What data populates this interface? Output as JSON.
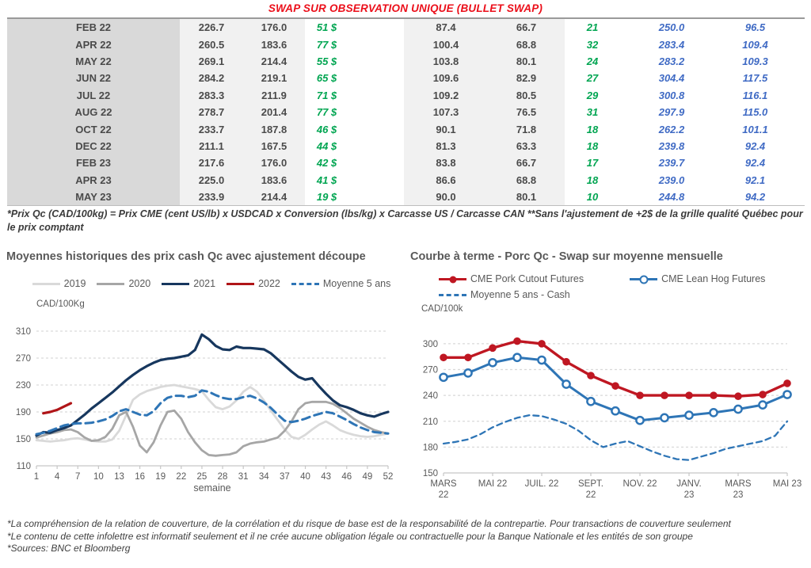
{
  "title": "SWAP SUR OBSERVATION UNIQUE (BULLET SWAP)",
  "colors": {
    "title_red": "#eb0e19",
    "green": "#00a551",
    "blue": "#3f6ac4",
    "text_gray": "#595959",
    "navy_2021": "#17375e",
    "red_2022": "#b01518",
    "steel_blue": "#2e75b6",
    "gray_2020": "#a6a6a6",
    "gray_2019": "#d9d9d9",
    "pork_red": "#bf1722"
  },
  "table": {
    "rows": [
      {
        "month": "FEB 22",
        "cells": [
          "226.7",
          "176.0",
          "51 $",
          "87.4",
          "66.7",
          "21",
          "250.0",
          "96.5"
        ]
      },
      {
        "month": "APR 22",
        "cells": [
          "260.5",
          "183.6",
          "77 $",
          "100.4",
          "68.8",
          "32",
          "283.4",
          "109.4"
        ]
      },
      {
        "month": "MAY 22",
        "cells": [
          "269.1",
          "214.4",
          "55 $",
          "103.8",
          "80.1",
          "24",
          "283.2",
          "109.3"
        ]
      },
      {
        "month": "JUN 22",
        "cells": [
          "284.2",
          "219.1",
          "65 $",
          "109.6",
          "82.9",
          "27",
          "304.4",
          "117.5"
        ]
      },
      {
        "month": "JUL 22",
        "cells": [
          "283.3",
          "211.9",
          "71 $",
          "109.2",
          "80.5",
          "29",
          "300.8",
          "116.1"
        ]
      },
      {
        "month": "AUG 22",
        "cells": [
          "278.7",
          "201.4",
          "77 $",
          "107.3",
          "76.5",
          "31",
          "297.9",
          "115.0"
        ]
      },
      {
        "month": "OCT 22",
        "cells": [
          "233.7",
          "187.8",
          "46 $",
          "90.1",
          "71.8",
          "18",
          "262.2",
          "101.1"
        ]
      },
      {
        "month": "DEC 22",
        "cells": [
          "211.1",
          "167.5",
          "44 $",
          "81.3",
          "63.3",
          "18",
          "239.8",
          "92.4"
        ]
      },
      {
        "month": "FEB 23",
        "cells": [
          "217.6",
          "176.0",
          "42 $",
          "83.8",
          "66.7",
          "17",
          "239.7",
          "92.4"
        ]
      },
      {
        "month": "APR 23",
        "cells": [
          "225.0",
          "183.6",
          "41 $",
          "86.6",
          "68.8",
          "18",
          "239.0",
          "92.1"
        ]
      },
      {
        "month": "MAY 23",
        "cells": [
          "233.9",
          "214.4",
          "19 $",
          "90.0",
          "80.1",
          "10",
          "244.8",
          "94.2"
        ]
      }
    ],
    "col_text_classes": [
      "",
      "",
      "green",
      "",
      "",
      "green",
      "blue",
      "blue"
    ],
    "footnote": "*Prix Qc (CAD/100kg) = Prix CME (cent US/lb) x USDCAD x Conversion (lbs/kg) x Carcasse US / Carcasse CAN **Sans l'ajustement de +2$ de la grille qualité Québec pour le prix comptant"
  },
  "chart_data": [
    {
      "type": "line",
      "title": "Moyennes historiques des prix cash Qc avec ajustement découpe",
      "ylabel": "CAD/100Kg",
      "xlabel": "semaine",
      "xlim": [
        1,
        52
      ],
      "ylim": [
        110,
        310
      ],
      "yticks": [
        110,
        150,
        190,
        230,
        270,
        310
      ],
      "xticks": [
        1,
        4,
        7,
        10,
        13,
        16,
        19,
        22,
        25,
        28,
        31,
        34,
        37,
        40,
        43,
        46,
        49,
        52
      ],
      "grid": "dashed-horizontal",
      "legend_position": "top-center",
      "margins": {
        "l": 38,
        "t": 26,
        "r": 22,
        "b": 44
      },
      "series": [
        {
          "name": "2019",
          "color": "#d9d9d9",
          "style": "solid",
          "width": 2.8,
          "x_start": 1,
          "values": [
            148,
            147,
            146,
            147,
            148,
            150,
            151,
            149,
            147,
            146,
            146,
            149,
            162,
            185,
            208,
            216,
            221,
            224,
            227,
            229,
            230,
            228,
            226,
            224,
            221,
            208,
            197,
            194,
            198,
            207,
            220,
            227,
            220,
            207,
            192,
            178,
            164,
            153,
            150,
            156,
            164,
            171,
            176,
            170,
            163,
            159,
            156,
            154,
            153,
            154,
            156,
            158
          ]
        },
        {
          "name": "2020",
          "color": "#a6a6a6",
          "style": "solid",
          "width": 2.8,
          "x_start": 1,
          "values": [
            152,
            155,
            158,
            160,
            163,
            164,
            160,
            152,
            147,
            148,
            153,
            165,
            185,
            190,
            168,
            140,
            130,
            145,
            170,
            190,
            192,
            180,
            160,
            145,
            133,
            126,
            125,
            126,
            127,
            130,
            139,
            143,
            145,
            146,
            149,
            152,
            162,
            176,
            194,
            203,
            205,
            205,
            205,
            202,
            196,
            188,
            180,
            174,
            168,
            163,
            160,
            158
          ]
        },
        {
          "name": "2021",
          "color": "#17375e",
          "style": "solid",
          "width": 3.2,
          "x_start": 1,
          "values": [
            155,
            160,
            159,
            163,
            166,
            170,
            178,
            186,
            195,
            203,
            211,
            219,
            228,
            237,
            245,
            252,
            258,
            263,
            267,
            269,
            270,
            272,
            274,
            282,
            305,
            298,
            288,
            283,
            282,
            287,
            285,
            285,
            284,
            283,
            277,
            268,
            259,
            250,
            242,
            238,
            240,
            228,
            217,
            207,
            200,
            197,
            193,
            188,
            185,
            183,
            187,
            190
          ]
        },
        {
          "name": "2022",
          "color": "#b01518",
          "style": "solid",
          "width": 3.2,
          "x_start": 2,
          "values": [
            188,
            190,
            193,
            198,
            203
          ]
        },
        {
          "name": "Moyenne 5 ans",
          "color": "#2e75b6",
          "style": "dashed",
          "width": 3,
          "dash": "10 6",
          "x_start": 1,
          "values": [
            157,
            159,
            162,
            166,
            170,
            172,
            173,
            173,
            174,
            176,
            179,
            184,
            191,
            194,
            190,
            186,
            185,
            191,
            203,
            211,
            214,
            214,
            212,
            214,
            222,
            220,
            215,
            211,
            209,
            209,
            212,
            214,
            210,
            204,
            196,
            186,
            177,
            175,
            177,
            180,
            184,
            187,
            190,
            188,
            183,
            178,
            172,
            167,
            163,
            160,
            159,
            158
          ]
        }
      ]
    },
    {
      "type": "line",
      "title": "Courbe à terme - Porc Qc - Swap sur moyenne mensuelle",
      "ylabel": "CAD/100k",
      "xlabel": "",
      "xlim": [
        0,
        14
      ],
      "ylim": [
        150,
        310
      ],
      "yticks": [
        150,
        180,
        210,
        240,
        270,
        300
      ],
      "xtick_pos": [
        0,
        2,
        4,
        6,
        8,
        10,
        12,
        14
      ],
      "xtick_labels": [
        [
          "MARS",
          "22"
        ],
        [
          "MAI 22"
        ],
        [
          "JUIL. 22"
        ],
        [
          "SEPT.",
          "22"
        ],
        [
          "NOV. 22"
        ],
        [
          "JANV.",
          "23"
        ],
        [
          "MARS",
          "23"
        ],
        [
          "MAI 23"
        ]
      ],
      "grid": "dashed-horizontal",
      "legend_position": "top-left",
      "legend_rows": [
        [
          0,
          1
        ],
        [
          2
        ]
      ],
      "margins": {
        "l": 42,
        "t": 21,
        "r": 30,
        "b": 50
      },
      "series": [
        {
          "name": "CME Pork Cutout Futures",
          "color": "#bf1722",
          "style": "solid",
          "width": 3.4,
          "marker": "filled",
          "x_start": 0,
          "values": [
            284,
            284,
            295,
            303,
            300,
            279,
            263,
            251,
            240,
            240,
            240,
            240,
            239,
            241,
            254
          ]
        },
        {
          "name": "CME Lean Hog Futures",
          "color": "#2e75b6",
          "style": "solid",
          "width": 3,
          "marker": "open",
          "x_start": 0,
          "values": [
            261,
            266,
            278,
            284,
            281,
            253,
            233,
            222,
            211,
            214,
            217,
            220,
            224,
            229,
            241
          ]
        },
        {
          "name": "Moyenne 5 ans - Cash",
          "color": "#2e75b6",
          "style": "dashed",
          "width": 2.3,
          "dash": "7 5",
          "x_start": 0,
          "x_step": 0.5,
          "values": [
            184,
            186,
            189,
            195,
            203,
            209,
            214,
            217,
            216,
            212,
            207,
            199,
            188,
            180,
            184,
            187,
            181,
            175,
            170,
            166,
            165,
            169,
            173,
            178,
            181,
            184,
            187,
            193,
            210
          ]
        }
      ]
    }
  ],
  "footer": {
    "lines": [
      "*La compréhension de la relation de couverture, de la corrélation et du risque de base est de la responsabilité de la contrepartie. Pour transactions de couverture seulement",
      "*Le contenu de cette infolettre est informatif seulement et il ne crée aucune obligation légale ou contractuelle pour la Banque Nationale et les entités de son groupe",
      "*Sources: BNC et Bloomberg"
    ]
  }
}
